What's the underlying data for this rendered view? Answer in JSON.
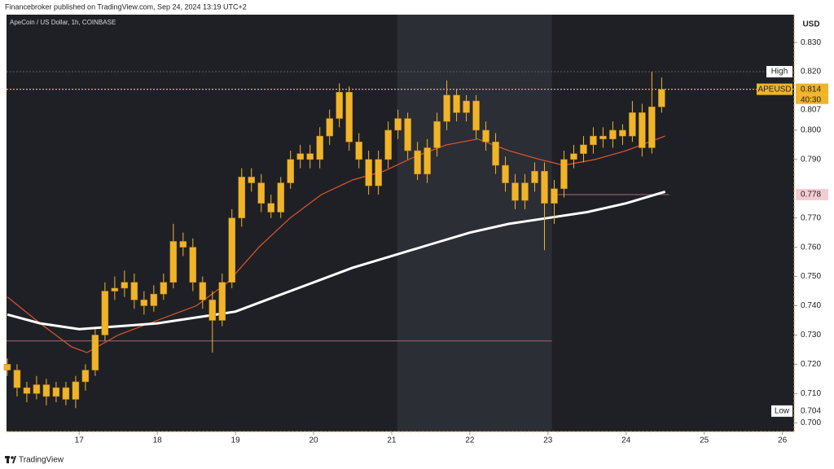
{
  "header": {
    "text": "Financebroker published on TradingView.com, Sep 24, 2024 13:19 UTC+2"
  },
  "footer": {
    "brand": "TradingView"
  },
  "chart_data": {
    "type": "candlestick",
    "title": "ApeCoin / US Dollar, 1h, COINBASE",
    "currency": "USD",
    "color": "#f0b429",
    "xlim": [
      16.07,
      26.15
    ],
    "ylim": [
      0.697,
      0.8395
    ],
    "xticks": [
      17,
      18,
      19,
      20,
      21,
      22,
      23,
      24,
      25,
      26
    ],
    "yticks": [
      {
        "value": 0.83,
        "label": "0.830"
      },
      {
        "value": 0.8,
        "label": "0.800"
      },
      {
        "value": 0.79,
        "label": "0.790"
      },
      {
        "value": 0.77,
        "label": "0.770"
      },
      {
        "value": 0.76,
        "label": "0.760"
      },
      {
        "value": 0.75,
        "label": "0.750"
      },
      {
        "value": 0.74,
        "label": "0.740"
      },
      {
        "value": 0.73,
        "label": "0.730"
      },
      {
        "value": 0.72,
        "label": "0.720"
      },
      {
        "value": 0.71,
        "label": "0.710"
      },
      {
        "value": 0.7,
        "label": "0.700"
      }
    ],
    "shaded_range": [
      21.07,
      23.05
    ],
    "x": [
      16.08,
      16.205,
      16.33,
      16.455,
      16.58,
      16.705,
      16.83,
      16.955,
      17.08,
      17.205,
      17.33,
      17.455,
      17.58,
      17.705,
      17.83,
      17.955,
      18.08,
      18.205,
      18.33,
      18.455,
      18.58,
      18.705,
      18.83,
      18.955,
      19.08,
      19.205,
      19.33,
      19.455,
      19.58,
      19.705,
      19.83,
      19.955,
      20.08,
      20.205,
      20.33,
      20.455,
      20.58,
      20.705,
      20.83,
      20.955,
      21.08,
      21.205,
      21.33,
      21.455,
      21.58,
      21.705,
      21.83,
      21.955,
      22.08,
      22.205,
      22.33,
      22.455,
      22.58,
      22.705,
      22.83,
      22.955,
      23.08,
      23.205,
      23.33,
      23.455,
      23.58,
      23.705,
      23.83,
      23.955,
      24.08,
      24.205,
      24.33,
      24.455
    ],
    "open": [
      0.72,
      0.718,
      0.712,
      0.71,
      0.713,
      0.709,
      0.712,
      0.708,
      0.714,
      0.718,
      0.73,
      0.745,
      0.746,
      0.748,
      0.742,
      0.74,
      0.744,
      0.748,
      0.762,
      0.76,
      0.748,
      0.742,
      0.735,
      0.748,
      0.77,
      0.784,
      0.782,
      0.775,
      0.772,
      0.782,
      0.79,
      0.792,
      0.79,
      0.798,
      0.804,
      0.813,
      0.796,
      0.79,
      0.781,
      0.79,
      0.8,
      0.804,
      0.793,
      0.785,
      0.794,
      0.803,
      0.812,
      0.806,
      0.81,
      0.8,
      0.796,
      0.788,
      0.782,
      0.776,
      0.782,
      0.786,
      0.775,
      0.78,
      0.79,
      0.792,
      0.795,
      0.798,
      0.797,
      0.8,
      0.798,
      0.806,
      0.794,
      0.808
    ],
    "high": [
      0.722,
      0.72,
      0.714,
      0.716,
      0.715,
      0.714,
      0.714,
      0.716,
      0.72,
      0.732,
      0.748,
      0.75,
      0.752,
      0.751,
      0.745,
      0.747,
      0.751,
      0.768,
      0.765,
      0.763,
      0.75,
      0.745,
      0.751,
      0.773,
      0.787,
      0.787,
      0.785,
      0.778,
      0.784,
      0.793,
      0.795,
      0.795,
      0.801,
      0.807,
      0.816,
      0.815,
      0.799,
      0.793,
      0.793,
      0.803,
      0.807,
      0.806,
      0.796,
      0.797,
      0.806,
      0.817,
      0.814,
      0.812,
      0.812,
      0.803,
      0.799,
      0.791,
      0.785,
      0.785,
      0.789,
      0.789,
      0.783,
      0.793,
      0.795,
      0.798,
      0.801,
      0.801,
      0.803,
      0.802,
      0.81,
      0.809,
      0.82,
      0.818
    ],
    "low": [
      0.716,
      0.709,
      0.707,
      0.708,
      0.706,
      0.707,
      0.706,
      0.705,
      0.711,
      0.716,
      0.728,
      0.742,
      0.743,
      0.739,
      0.737,
      0.738,
      0.742,
      0.746,
      0.757,
      0.745,
      0.739,
      0.724,
      0.733,
      0.746,
      0.767,
      0.779,
      0.772,
      0.77,
      0.77,
      0.78,
      0.787,
      0.787,
      0.787,
      0.795,
      0.801,
      0.793,
      0.787,
      0.778,
      0.778,
      0.787,
      0.797,
      0.79,
      0.783,
      0.782,
      0.791,
      0.8,
      0.803,
      0.803,
      0.797,
      0.793,
      0.785,
      0.779,
      0.773,
      0.773,
      0.779,
      0.759,
      0.768,
      0.777,
      0.787,
      0.789,
      0.792,
      0.794,
      0.794,
      0.795,
      0.796,
      0.791,
      0.792,
      0.806
    ],
    "close": [
      0.718,
      0.712,
      0.71,
      0.713,
      0.709,
      0.712,
      0.708,
      0.714,
      0.718,
      0.73,
      0.745,
      0.746,
      0.748,
      0.742,
      0.74,
      0.744,
      0.748,
      0.762,
      0.76,
      0.748,
      0.742,
      0.735,
      0.748,
      0.77,
      0.784,
      0.782,
      0.775,
      0.772,
      0.782,
      0.79,
      0.792,
      0.79,
      0.798,
      0.804,
      0.813,
      0.796,
      0.79,
      0.781,
      0.79,
      0.8,
      0.804,
      0.793,
      0.785,
      0.794,
      0.803,
      0.812,
      0.806,
      0.81,
      0.8,
      0.796,
      0.788,
      0.782,
      0.776,
      0.782,
      0.786,
      0.775,
      0.78,
      0.79,
      0.792,
      0.795,
      0.798,
      0.797,
      0.8,
      0.798,
      0.806,
      0.794,
      0.808,
      0.814
    ],
    "lines": [
      {
        "color": "#e0562c",
        "width": 1.2,
        "x": [
          16.08,
          16.5,
          16.9,
          17.1,
          17.5,
          18.0,
          18.5,
          18.9,
          19.3,
          19.7,
          20.1,
          20.5,
          20.9,
          21.3,
          21.7,
          22.1,
          22.5,
          22.9,
          23.2,
          23.6,
          24.0,
          24.5
        ],
        "values": [
          0.743,
          0.734,
          0.726,
          0.724,
          0.73,
          0.735,
          0.74,
          0.748,
          0.76,
          0.77,
          0.778,
          0.783,
          0.786,
          0.791,
          0.795,
          0.797,
          0.793,
          0.79,
          0.788,
          0.79,
          0.793,
          0.798
        ]
      },
      {
        "color": "#ffffff",
        "width": 3,
        "x": [
          16.08,
          16.5,
          17.0,
          17.5,
          18.0,
          18.5,
          19.0,
          19.5,
          20.0,
          20.5,
          21.0,
          21.5,
          22.0,
          22.5,
          23.0,
          23.5,
          24.0,
          24.5
        ],
        "values": [
          0.737,
          0.734,
          0.732,
          0.733,
          0.734,
          0.736,
          0.738,
          0.743,
          0.748,
          0.753,
          0.757,
          0.761,
          0.765,
          0.768,
          0.77,
          0.772,
          0.775,
          0.779
        ]
      }
    ],
    "levels": [
      {
        "value": 0.728,
        "x": [
          16.07,
          23.05
        ],
        "color": "#8a5a66",
        "dash": false
      },
      {
        "value": 0.778,
        "x": [
          23.05,
          24.55
        ],
        "color": "#8a5a66",
        "dash": false
      },
      {
        "value": 0.814,
        "x": [
          16.07,
          26.15
        ],
        "color": "#f0b429",
        "dash": true
      },
      {
        "value": 0.82,
        "x": [
          16.07,
          26.15
        ],
        "color": "#55575e",
        "dash": true
      }
    ],
    "price_labels": [
      {
        "label": "High",
        "value": 0.82,
        "value_label": "0.820",
        "bg": "#ffffff",
        "fg": "#111111"
      },
      {
        "label": "APEUSD",
        "value": 0.814,
        "value_label": "0.814",
        "countdown": "40:30",
        "bg": "#f0b429",
        "fg": "#111111"
      },
      {
        "value": 0.807,
        "value_label": "0.807",
        "bg": "#ffffff",
        "fg": "#111111"
      },
      {
        "value": 0.778,
        "value_label": "0.778",
        "bg": "#f4cdd3",
        "fg": "#b0223c"
      },
      {
        "label": "Low",
        "value": 0.704,
        "value_label": "0.704",
        "bg": "#ffffff",
        "fg": "#111111"
      }
    ]
  }
}
